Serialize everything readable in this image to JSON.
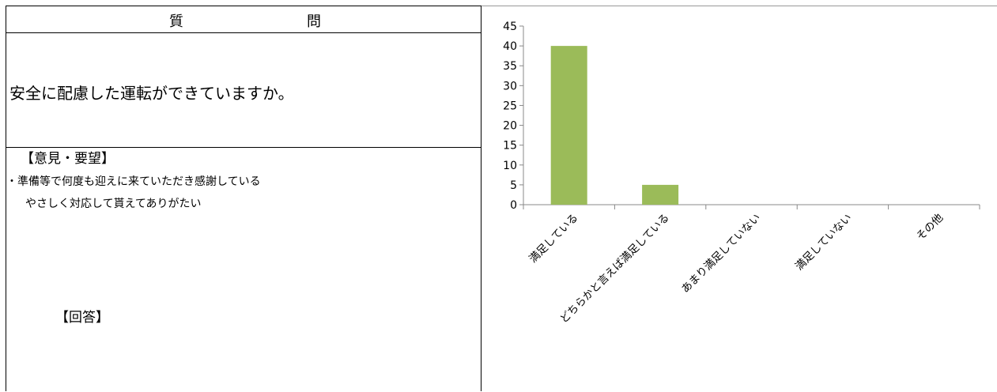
{
  "table": {
    "header_char_1": "質",
    "header_char_2": "問",
    "question": "安全に配慮した運転ができていますか。",
    "opinion_heading": "【意見・要望】",
    "opinions": [
      "・準備等で何度も迎えに来ていただき感謝している",
      "やさしく対応して貰えてありがたい"
    ],
    "answer_heading": "【回答】"
  },
  "chart_data": {
    "type": "bar",
    "title": "",
    "xlabel": "",
    "ylabel": "",
    "categories": [
      "満足している",
      "どちらかと言えば満足している",
      "あまり満足していない",
      "満足していない",
      "その他"
    ],
    "values": [
      40,
      5,
      0,
      0,
      0
    ],
    "ylim": [
      0,
      45
    ],
    "yticks": [
      0,
      5,
      10,
      15,
      20,
      25,
      30,
      35,
      40,
      45
    ],
    "bar_color": "#9bbb59",
    "grid": false,
    "legend": "none"
  }
}
